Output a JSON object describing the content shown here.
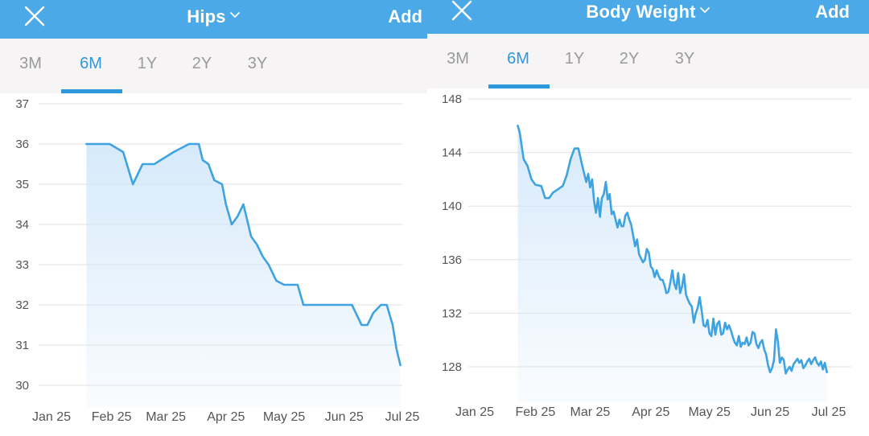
{
  "screens": [
    {
      "header": {
        "title": "Hips",
        "add_label": "Add"
      },
      "tabs": [
        {
          "label": "3M",
          "active": false
        },
        {
          "label": "6M",
          "active": true
        },
        {
          "label": "1Y",
          "active": false
        },
        {
          "label": "2Y",
          "active": false
        },
        {
          "label": "3Y",
          "active": false
        }
      ]
    },
    {
      "header": {
        "title": "Body Weight",
        "add_label": "Add"
      },
      "tabs": [
        {
          "label": "3M",
          "active": false
        },
        {
          "label": "6M",
          "active": true
        },
        {
          "label": "1Y",
          "active": false
        },
        {
          "label": "2Y",
          "active": false
        },
        {
          "label": "3Y",
          "active": false
        }
      ]
    }
  ],
  "colors": {
    "header_bg": "#4aa9e6",
    "accent": "#2d98dc",
    "line": "#3ea3e0",
    "fill_top": "#cfe6fa",
    "tab_bar_bg": "#f7f4f6",
    "gridline": "#e2e2e2"
  },
  "icons": [
    "close-icon",
    "chevron-down-icon"
  ],
  "chart_data": [
    {
      "type": "area",
      "title": "Hips",
      "x_unit": "days since Jan 1 2025",
      "xticks": [
        {
          "label": "Jan 25",
          "x": 0
        },
        {
          "label": "Feb 25",
          "x": 31
        },
        {
          "label": "Mar 25",
          "x": 59
        },
        {
          "label": "Apr 25",
          "x": 90
        },
        {
          "label": "May 25",
          "x": 120
        },
        {
          "label": "Jun 25",
          "x": 151
        },
        {
          "label": "Jul 25",
          "x": 181
        }
      ],
      "xlim": [
        0,
        181
      ],
      "ylim": [
        30,
        37
      ],
      "yticks": [
        30,
        31,
        32,
        33,
        34,
        35,
        36,
        37
      ],
      "grid": true,
      "x": [
        18,
        30,
        37,
        42,
        47,
        53,
        63,
        71,
        76,
        78,
        81,
        84,
        88,
        90,
        93,
        96,
        99,
        103,
        106,
        109,
        112,
        116,
        120,
        124,
        127,
        130,
        135,
        138,
        141,
        145,
        150,
        155,
        160,
        163,
        166,
        170,
        173,
        176,
        178,
        180
      ],
      "y": [
        36,
        36,
        35.8,
        35,
        35.5,
        35.5,
        35.8,
        36,
        36,
        35.6,
        35.5,
        35.1,
        35,
        34.5,
        34,
        34.2,
        34.5,
        33.7,
        33.5,
        33.2,
        33,
        32.6,
        32.5,
        32.5,
        32.5,
        32,
        32,
        32,
        32,
        32,
        32,
        32,
        31.5,
        31.5,
        31.8,
        32,
        32,
        31.5,
        30.9,
        30.5
      ]
    },
    {
      "type": "area",
      "title": "Body Weight",
      "x_unit": "days since Jan 1 2025",
      "xticks": [
        {
          "label": "Jan 25",
          "x": 0
        },
        {
          "label": "Feb 25",
          "x": 31
        },
        {
          "label": "Mar 25",
          "x": 59
        },
        {
          "label": "Apr 25",
          "x": 90
        },
        {
          "label": "May 25",
          "x": 120
        },
        {
          "label": "Jun 25",
          "x": 151
        },
        {
          "label": "Jul 25",
          "x": 181
        }
      ],
      "xlim": [
        0,
        181
      ],
      "ylim": [
        126,
        148
      ],
      "yticks": [
        128,
        132,
        136,
        140,
        144,
        148
      ],
      "grid": true,
      "x": [
        22,
        23,
        25,
        27,
        29,
        31,
        34,
        36,
        38,
        40,
        42,
        45,
        47,
        49,
        51,
        53,
        55,
        57,
        58,
        59,
        60,
        61,
        62,
        63,
        64,
        65,
        66,
        67,
        68,
        69,
        70,
        71,
        72,
        73,
        74,
        75,
        76,
        77,
        78,
        79,
        80,
        81,
        82,
        83,
        84,
        85,
        86,
        87,
        88,
        89,
        90,
        91,
        92,
        93,
        94,
        95,
        96,
        97,
        98,
        99,
        100,
        101,
        102,
        103,
        104,
        105,
        106,
        107,
        108,
        109,
        110,
        111,
        112,
        113,
        114,
        115,
        116,
        117,
        118,
        119,
        120,
        121,
        122,
        123,
        124,
        125,
        126,
        127,
        128,
        129,
        130,
        131,
        132,
        133,
        134,
        135,
        136,
        137,
        138,
        139,
        140,
        141,
        142,
        143,
        144,
        145,
        146,
        147,
        148,
        149,
        150,
        151,
        152,
        153,
        154,
        155,
        156,
        157,
        158,
        159,
        160,
        161,
        162,
        163,
        164,
        165,
        166,
        167,
        168,
        169,
        170,
        171,
        172,
        173,
        174,
        175,
        176,
        177,
        178,
        179,
        180
      ],
      "y": [
        146,
        145.5,
        143.5,
        143,
        142,
        141.6,
        141.5,
        140.6,
        140.6,
        141,
        141.2,
        141.5,
        142.3,
        143.5,
        144.3,
        144.3,
        143,
        141.8,
        142.4,
        141.4,
        142,
        140.4,
        139.5,
        140.6,
        139.2,
        140.6,
        140.9,
        141.8,
        140.5,
        140.9,
        139.4,
        139.6,
        139,
        138.4,
        139,
        138.5,
        138.5,
        139.3,
        139.5,
        139,
        138.6,
        137.8,
        137,
        137.5,
        136.4,
        136.1,
        135.8,
        136,
        136.8,
        136.5,
        135.5,
        135.3,
        134.7,
        135.2,
        134.8,
        134.5,
        134.5,
        134.1,
        133.5,
        133.6,
        134.3,
        135.2,
        134.2,
        133.8,
        135,
        133.5,
        134,
        134.9,
        133.4,
        133,
        132.7,
        132.5,
        131.3,
        132,
        132.4,
        133.2,
        132.2,
        131.1,
        131,
        131.5,
        130.5,
        130.3,
        131.6,
        130.4,
        131.2,
        131.4,
        130.4,
        130.5,
        131.3,
        130.8,
        131.1,
        130.7,
        130.2,
        129.8,
        129.6,
        130.3,
        129.5,
        129.8,
        129.7,
        130.2,
        129.6,
        129.8,
        130.6,
        130.5,
        129.7,
        129.4,
        129.8,
        130,
        129.3,
        128.9,
        128.1,
        127.6,
        127.9,
        128.5,
        130.8,
        129.9,
        128.3,
        128.7,
        128.5,
        127.5,
        127.8,
        128,
        127.7,
        128.2,
        128.4,
        128.6,
        128.3,
        128.5,
        127.9,
        128.1,
        128.4,
        128.6,
        128.2,
        128.5,
        128.7,
        128.3,
        128.1,
        128.4,
        127.8,
        128.3,
        127.6
      ]
    }
  ]
}
